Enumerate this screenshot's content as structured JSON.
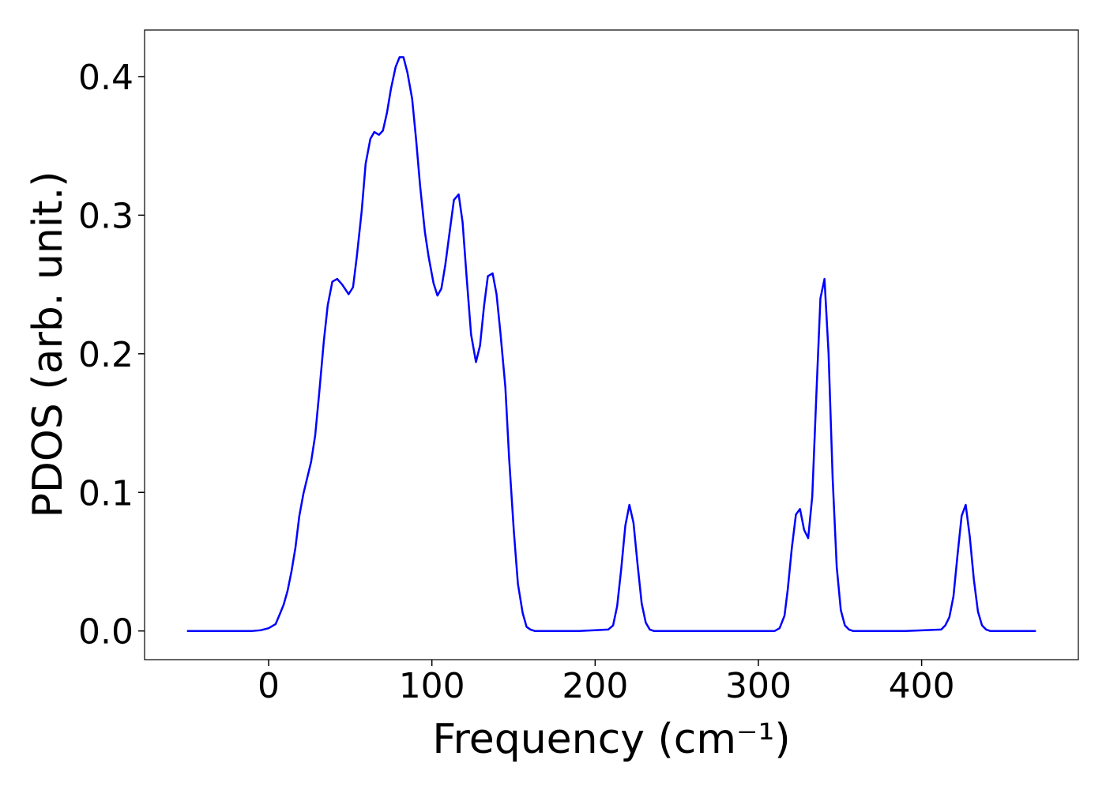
{
  "chart_data": {
    "type": "line",
    "x_label": "Frequency (cm⁻¹)",
    "y_label": "PDOS (arb. unit.)",
    "xlim": [
      -76,
      496
    ],
    "ylim": [
      -0.0207,
      0.4336
    ],
    "xticks": [
      0,
      100,
      200,
      300,
      400
    ],
    "yticks": [
      {
        "value": 0,
        "label": "0.0"
      },
      0.1,
      0.2,
      0.3,
      0.4
    ],
    "grid": false,
    "series": [
      {
        "color": "#0000ff",
        "x": [
          -50,
          -30,
          -10,
          -5,
          0,
          4.3,
          6.8,
          9.2,
          11.6,
          14,
          16.4,
          18.8,
          21.3,
          26,
          28.5,
          31,
          33.8,
          36.2,
          39,
          42,
          45,
          49,
          51.7,
          54,
          57,
          59.4,
          62.3,
          64.7,
          67.6,
          70,
          72.5,
          74.9,
          77.8,
          80.2,
          82.6,
          85,
          87.9,
          90.3,
          92.8,
          95.7,
          98,
          101,
          103.4,
          105.8,
          108.2,
          111,
          113.5,
          116.4,
          118.8,
          121.3,
          124,
          127,
          129.5,
          132,
          134.3,
          137.2,
          139.6,
          142,
          145,
          147.3,
          150.2,
          152.7,
          155.6,
          158,
          160.4,
          163,
          190,
          208,
          211,
          213.5,
          216,
          218.5,
          221,
          223.5,
          226,
          228.5,
          231,
          233.5,
          236,
          270,
          310,
          313,
          316,
          318,
          320.5,
          323,
          325.5,
          328,
          330.5,
          333,
          335.5,
          338,
          340.5,
          343,
          345.5,
          348,
          350.5,
          353,
          355.5,
          358,
          390,
          412,
          414.5,
          417,
          419.5,
          422,
          424.5,
          427,
          429.5,
          432,
          434.5,
          437,
          439.5,
          442,
          470
        ],
        "values": [
          0,
          0,
          0,
          0.0005,
          0.002,
          0.005,
          0.012,
          0.019,
          0.029,
          0.043,
          0.06,
          0.083,
          0.099,
          0.122,
          0.141,
          0.172,
          0.209,
          0.235,
          0.252,
          0.254,
          0.25,
          0.243,
          0.248,
          0.27,
          0.303,
          0.337,
          0.355,
          0.36,
          0.358,
          0.361,
          0.374,
          0.391,
          0.407,
          0.414,
          0.414,
          0.403,
          0.384,
          0.355,
          0.321,
          0.288,
          0.27,
          0.251,
          0.242,
          0.247,
          0.264,
          0.289,
          0.311,
          0.315,
          0.295,
          0.255,
          0.214,
          0.194,
          0.206,
          0.235,
          0.256,
          0.258,
          0.243,
          0.215,
          0.176,
          0.125,
          0.072,
          0.034,
          0.013,
          0.003,
          0.001,
          0,
          0,
          0.001,
          0.004,
          0.018,
          0.045,
          0.076,
          0.091,
          0.078,
          0.048,
          0.02,
          0.006,
          0.001,
          0,
          0,
          0,
          0.002,
          0.011,
          0.03,
          0.06,
          0.084,
          0.088,
          0.073,
          0.067,
          0.097,
          0.17,
          0.24,
          0.254,
          0.2,
          0.11,
          0.046,
          0.015,
          0.004,
          0.001,
          0,
          0,
          0.001,
          0.004,
          0.01,
          0.025,
          0.055,
          0.083,
          0.091,
          0.068,
          0.037,
          0.014,
          0.004,
          0.001,
          0,
          0
        ]
      }
    ]
  }
}
